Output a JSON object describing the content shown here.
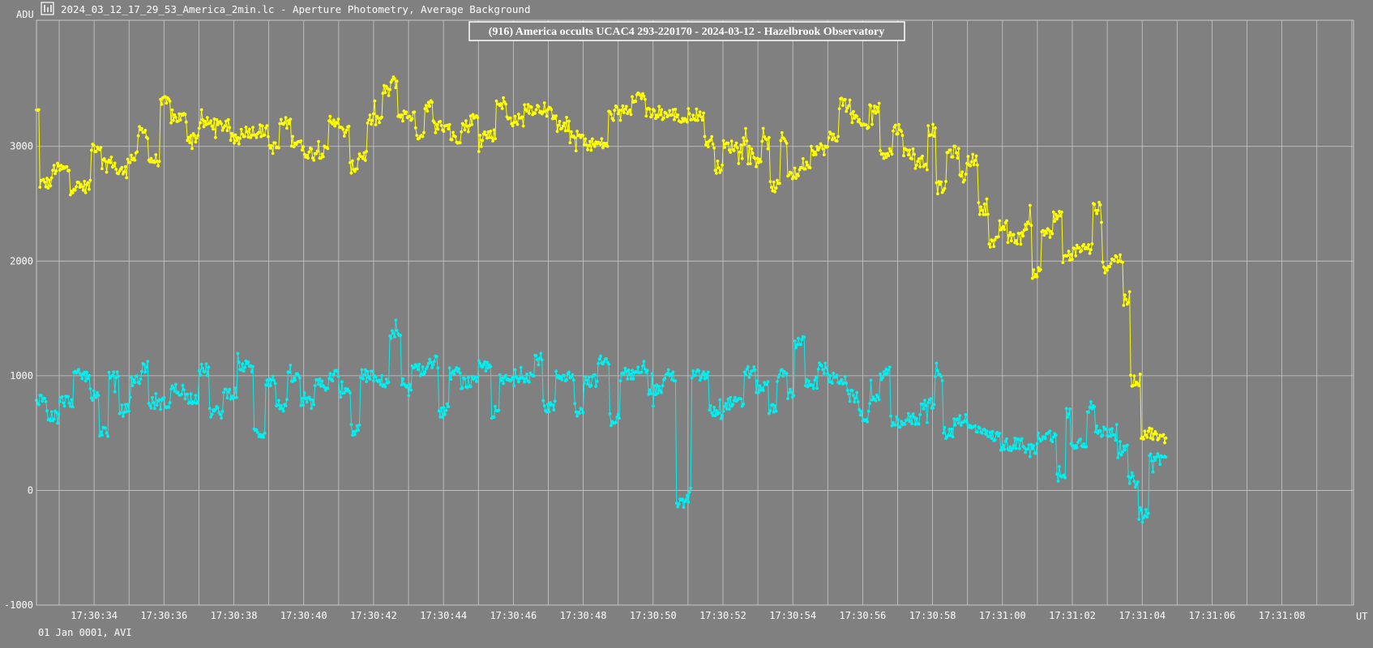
{
  "window": {
    "icon": "lightcurve-app-icon",
    "title": "2024_03_12_17_29_53_America_2min.lc - Aperture Photometry, Average Background"
  },
  "colors": {
    "background": "#808080",
    "grid": "#c8c8c8",
    "text": "#ffffff",
    "target": "#ffff00",
    "comparison": "#00f0f0"
  },
  "chart_data": {
    "type": "line",
    "title": "(916) America occults UCAC4 293-220170 - 2024-03-12 - Hazelbrook Observatory",
    "ylabel": "ADU",
    "xlabel": "UT",
    "ylim": [
      -1000,
      4100
    ],
    "xlim_seconds": [
      32.35,
      70.05
    ],
    "yticks": [
      "-1000",
      "0",
      "1000",
      "2000",
      "3000"
    ],
    "ytick_values": [
      -1000,
      0,
      1000,
      2000,
      3000
    ],
    "xticks": [
      "17:30:34",
      "17:30:36",
      "17:30:38",
      "17:30:40",
      "17:30:42",
      "17:30:44",
      "17:30:46",
      "17:30:48",
      "17:30:50",
      "17:30:52",
      "17:30:54",
      "17:30:56",
      "17:30:58",
      "17:31:00",
      "17:31:02",
      "17:31:04",
      "17:31:06",
      "17:31:08"
    ],
    "grid": true,
    "footer": "01 Jan 0001, AVI",
    "series": [
      {
        "role": "target",
        "color": "#ffff00",
        "levels": [
          [
            32.35,
            3300
          ],
          [
            32.45,
            2680
          ],
          [
            32.8,
            2800
          ],
          [
            33.3,
            2650
          ],
          [
            33.9,
            3000
          ],
          [
            34.2,
            2860
          ],
          [
            34.6,
            2780
          ],
          [
            34.95,
            2900
          ],
          [
            35.25,
            3120
          ],
          [
            35.55,
            2880
          ],
          [
            35.9,
            3380
          ],
          [
            36.2,
            3250
          ],
          [
            36.65,
            3080
          ],
          [
            37.0,
            3200
          ],
          [
            37.5,
            3180
          ],
          [
            37.85,
            3060
          ],
          [
            38.2,
            3130
          ],
          [
            39.0,
            2990
          ],
          [
            39.3,
            3200
          ],
          [
            39.65,
            3050
          ],
          [
            39.95,
            2950
          ],
          [
            40.7,
            3230
          ],
          [
            41.0,
            3130
          ],
          [
            41.3,
            2820
          ],
          [
            41.55,
            2920
          ],
          [
            41.8,
            3230
          ],
          [
            42.25,
            3480
          ],
          [
            42.5,
            3560
          ],
          [
            42.7,
            3270
          ],
          [
            43.2,
            3110
          ],
          [
            43.45,
            3360
          ],
          [
            43.7,
            3180
          ],
          [
            44.2,
            3080
          ],
          [
            44.5,
            3180
          ],
          [
            44.75,
            3240
          ],
          [
            45.0,
            3100
          ],
          [
            45.5,
            3380
          ],
          [
            45.8,
            3230
          ],
          [
            46.3,
            3330
          ],
          [
            46.9,
            3290
          ],
          [
            47.25,
            3170
          ],
          [
            47.6,
            3080
          ],
          [
            48.0,
            3020
          ],
          [
            48.7,
            3270
          ],
          [
            49.1,
            3330
          ],
          [
            49.4,
            3440
          ],
          [
            49.8,
            3280
          ],
          [
            50.7,
            3240
          ],
          [
            51.0,
            3280
          ],
          [
            51.45,
            3040
          ],
          [
            51.75,
            2820
          ],
          [
            52.0,
            3000
          ],
          [
            52.5,
            3050
          ],
          [
            52.7,
            2900
          ],
          [
            53.1,
            3030
          ],
          [
            53.35,
            2650
          ],
          [
            53.65,
            3070
          ],
          [
            53.85,
            2760
          ],
          [
            54.2,
            2850
          ],
          [
            54.5,
            2980
          ],
          [
            55.0,
            3080
          ],
          [
            55.3,
            3380
          ],
          [
            55.65,
            3250
          ],
          [
            55.85,
            3180
          ],
          [
            56.2,
            3330
          ],
          [
            56.5,
            2950
          ],
          [
            56.85,
            3150
          ],
          [
            57.15,
            2940
          ],
          [
            57.5,
            2850
          ],
          [
            57.85,
            3140
          ],
          [
            58.1,
            2640
          ],
          [
            58.4,
            2950
          ],
          [
            58.75,
            2730
          ],
          [
            58.95,
            2880
          ],
          [
            59.3,
            2460
          ],
          [
            59.6,
            2160
          ],
          [
            59.9,
            2300
          ],
          [
            60.15,
            2200
          ],
          [
            60.6,
            2320
          ],
          [
            60.85,
            1900
          ],
          [
            61.1,
            2260
          ],
          [
            61.45,
            2380
          ],
          [
            61.7,
            2040
          ],
          [
            62.0,
            2110
          ],
          [
            62.6,
            2460
          ],
          [
            62.85,
            1950
          ],
          [
            63.1,
            2020
          ],
          [
            63.45,
            1650
          ],
          [
            63.65,
            960
          ],
          [
            63.95,
            500
          ],
          [
            64.4,
            450
          ],
          [
            64.7,
            600
          ]
        ]
      },
      {
        "role": "comparison",
        "color": "#00f0f0",
        "levels": [
          [
            32.35,
            800
          ],
          [
            32.65,
            650
          ],
          [
            33.0,
            780
          ],
          [
            33.4,
            1000
          ],
          [
            33.9,
            820
          ],
          [
            34.15,
            520
          ],
          [
            34.4,
            980
          ],
          [
            34.7,
            700
          ],
          [
            35.0,
            960
          ],
          [
            35.35,
            1080
          ],
          [
            35.55,
            760
          ],
          [
            36.2,
            880
          ],
          [
            36.6,
            810
          ],
          [
            37.0,
            1050
          ],
          [
            37.3,
            680
          ],
          [
            37.7,
            850
          ],
          [
            38.1,
            1080
          ],
          [
            38.55,
            500
          ],
          [
            38.9,
            960
          ],
          [
            39.2,
            740
          ],
          [
            39.55,
            980
          ],
          [
            39.9,
            760
          ],
          [
            40.3,
            920
          ],
          [
            40.7,
            1000
          ],
          [
            41.0,
            850
          ],
          [
            41.35,
            530
          ],
          [
            41.6,
            1000
          ],
          [
            42.0,
            950
          ],
          [
            42.45,
            1350
          ],
          [
            42.8,
            880
          ],
          [
            43.1,
            1050
          ],
          [
            43.55,
            1120
          ],
          [
            43.85,
            680
          ],
          [
            44.15,
            1020
          ],
          [
            44.5,
            940
          ],
          [
            45.0,
            1080
          ],
          [
            45.35,
            680
          ],
          [
            45.6,
            960
          ],
          [
            46.0,
            1000
          ],
          [
            46.6,
            1150
          ],
          [
            46.85,
            730
          ],
          [
            47.2,
            1000
          ],
          [
            47.75,
            720
          ],
          [
            48.0,
            960
          ],
          [
            48.4,
            1120
          ],
          [
            48.75,
            620
          ],
          [
            49.05,
            1000
          ],
          [
            49.45,
            1080
          ],
          [
            49.85,
            880
          ],
          [
            50.3,
            1000
          ],
          [
            50.65,
            -120
          ],
          [
            50.95,
            -20
          ],
          [
            51.1,
            1000
          ],
          [
            51.6,
            690
          ],
          [
            52.05,
            760
          ],
          [
            52.6,
            1030
          ],
          [
            52.95,
            900
          ],
          [
            53.3,
            700
          ],
          [
            53.55,
            1000
          ],
          [
            53.85,
            850
          ],
          [
            54.05,
            1290
          ],
          [
            54.35,
            940
          ],
          [
            54.7,
            1060
          ],
          [
            55.0,
            970
          ],
          [
            55.55,
            820
          ],
          [
            55.9,
            650
          ],
          [
            56.2,
            780
          ],
          [
            56.5,
            1020
          ],
          [
            56.8,
            600
          ],
          [
            57.3,
            620
          ],
          [
            57.65,
            760
          ],
          [
            58.05,
            990
          ],
          [
            58.3,
            500
          ],
          [
            58.6,
            620
          ],
          [
            59.0,
            540
          ],
          [
            59.55,
            470
          ],
          [
            59.95,
            400
          ],
          [
            60.6,
            360
          ],
          [
            61.0,
            480
          ],
          [
            61.55,
            100
          ],
          [
            61.8,
            680
          ],
          [
            61.95,
            420
          ],
          [
            62.4,
            730
          ],
          [
            62.65,
            510
          ],
          [
            62.95,
            520
          ],
          [
            63.3,
            340
          ],
          [
            63.6,
            100
          ],
          [
            63.9,
            -200
          ],
          [
            64.2,
            280
          ],
          [
            64.7,
            260
          ]
        ]
      }
    ]
  }
}
